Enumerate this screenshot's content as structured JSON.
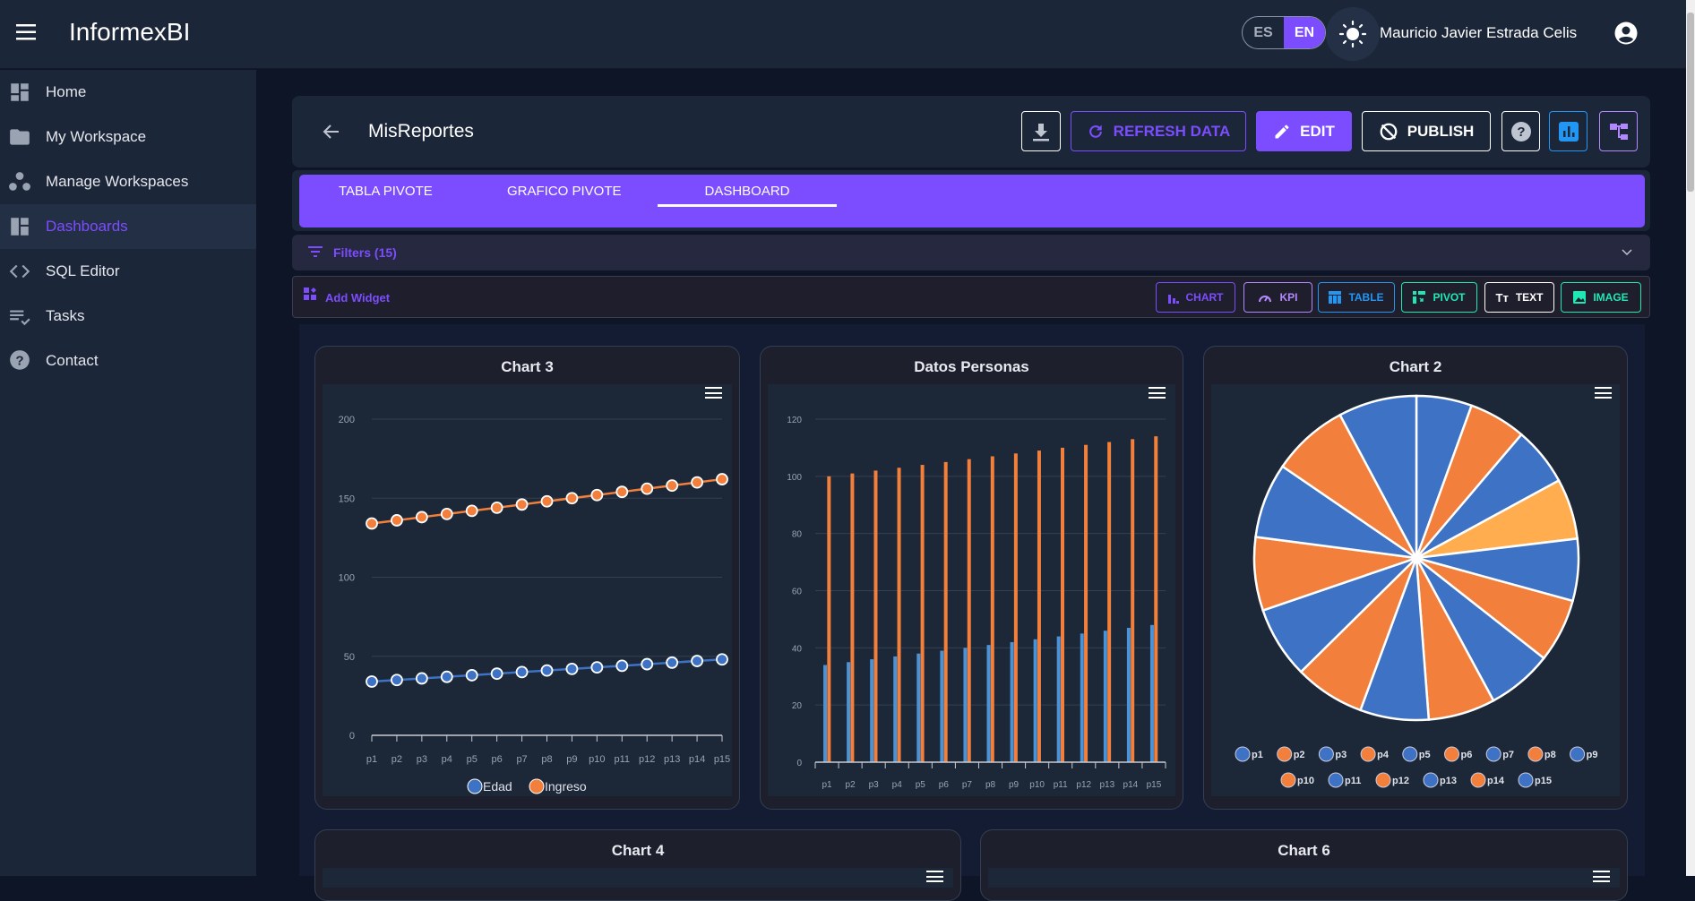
{
  "app": {
    "title": "InformexBI",
    "user_name": "Mauricio Javier Estrada Celis",
    "lang_options": [
      "ES",
      "EN"
    ],
    "lang_selected": "EN"
  },
  "sidebar": {
    "items": [
      {
        "label": "Home",
        "icon": "dashboard-icon"
      },
      {
        "label": "My Workspace",
        "icon": "folder-icon"
      },
      {
        "label": "Manage Workspaces",
        "icon": "workspaces-icon"
      },
      {
        "label": "Dashboards",
        "icon": "dashboards-icon",
        "active": true
      },
      {
        "label": "SQL Editor",
        "icon": "code-icon"
      },
      {
        "label": "Tasks",
        "icon": "tasks-icon"
      },
      {
        "label": "Contact",
        "icon": "help-icon"
      }
    ]
  },
  "report": {
    "title": "MisReportes",
    "refresh_label": "REFRESH DATA",
    "edit_label": "EDIT",
    "publish_label": "PUBLISH"
  },
  "tabs": [
    {
      "label": "TABLA PIVOTE"
    },
    {
      "label": "GRAFICO PIVOTE"
    },
    {
      "label": "DASHBOARD",
      "active": true
    }
  ],
  "filters": {
    "label": "Filters (15)"
  },
  "widgets": {
    "add_label": "Add Widget",
    "buttons": [
      {
        "label": "CHART",
        "color": "#7c4dff"
      },
      {
        "label": "KPI",
        "color": "#b388ff"
      },
      {
        "label": "TABLE",
        "color": "#2196f3"
      },
      {
        "label": "PIVOT",
        "color": "#1de9b6"
      },
      {
        "label": "TEXT",
        "color": "#ffffff"
      },
      {
        "label": "IMAGE",
        "color": "#1de9b6"
      }
    ]
  },
  "colors": {
    "accent": "#7c4dff",
    "blue": "#3d72c4",
    "orange": "#f2803c",
    "highlight": "#ffad4f"
  },
  "chart_data": [
    {
      "title": "Chart 3",
      "type": "line",
      "categories": [
        "p1",
        "p2",
        "p3",
        "p4",
        "p5",
        "p6",
        "p7",
        "p8",
        "p9",
        "p10",
        "p11",
        "p12",
        "p13",
        "p14",
        "p15"
      ],
      "ylim": [
        0,
        200
      ],
      "yticks": [
        0,
        50,
        100,
        150,
        200
      ],
      "grid": true,
      "legend": "bottom",
      "series": [
        {
          "name": "Edad",
          "color": "#3d72c4",
          "values": [
            34,
            35,
            36,
            37,
            38,
            39,
            40,
            41,
            42,
            43,
            44,
            45,
            46,
            47,
            48
          ]
        },
        {
          "name": "Ingreso",
          "color": "#f2803c",
          "values": [
            134,
            136,
            138,
            140,
            142,
            144,
            146,
            148,
            150,
            152,
            154,
            156,
            158,
            160,
            162
          ]
        }
      ]
    },
    {
      "title": "Datos Personas",
      "type": "bar",
      "categories": [
        "p1",
        "p2",
        "p3",
        "p4",
        "p5",
        "p6",
        "p7",
        "p8",
        "p9",
        "p10",
        "p11",
        "p12",
        "p13",
        "p14",
        "p15"
      ],
      "ylim": [
        0,
        120
      ],
      "yticks": [
        0,
        20,
        40,
        60,
        80,
        100,
        120
      ],
      "grid": true,
      "series": [
        {
          "color": "#4a93d6",
          "values": [
            34,
            35,
            36,
            37,
            38,
            39,
            40,
            41,
            42,
            43,
            44,
            45,
            46,
            47,
            48
          ]
        },
        {
          "color": "#f2803c",
          "values": [
            100,
            101,
            102,
            103,
            104,
            105,
            106,
            107,
            108,
            109,
            110,
            111,
            112,
            113,
            114
          ]
        }
      ]
    },
    {
      "title": "Chart 2",
      "type": "pie",
      "legend": "bottom",
      "highlighted": "p4",
      "labels": [
        "p1",
        "p2",
        "p3",
        "p4",
        "p5",
        "p6",
        "p7",
        "p8",
        "p9",
        "p10",
        "p11",
        "p12",
        "p13",
        "p14",
        "p15"
      ],
      "values": [
        34,
        35,
        36,
        37,
        38,
        39,
        40,
        41,
        42,
        43,
        44,
        45,
        46,
        47,
        48
      ]
    },
    {
      "title": "Chart 4"
    },
    {
      "title": "Chart 6"
    }
  ]
}
